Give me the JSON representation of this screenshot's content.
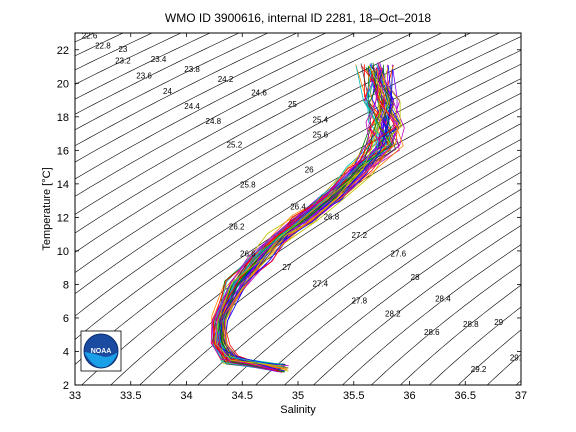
{
  "chart_data": {
    "type": "line",
    "title": "WMO ID 3900616, internal ID 2281, 18–Oct–2018",
    "xlabel": "Salinity",
    "ylabel": "Temperature [°C]",
    "xlim": [
      33,
      37
    ],
    "ylim": [
      2,
      23
    ],
    "x_ticks": [
      "33",
      "33.5",
      "34",
      "34.5",
      "35",
      "35.5",
      "36",
      "36.5",
      "37"
    ],
    "y_ticks": [
      "2",
      "4",
      "6",
      "8",
      "10",
      "12",
      "14",
      "16",
      "18",
      "20",
      "22"
    ],
    "grid": false,
    "logo_text": "NOAA",
    "density_contour_labels": [
      {
        "label": "22.6",
        "s": 33.13,
        "t": 22.8
      },
      {
        "label": "22.8",
        "s": 33.25,
        "t": 22.2
      },
      {
        "label": "23",
        "s": 33.43,
        "t": 22.0
      },
      {
        "label": "23.2",
        "s": 33.43,
        "t": 21.3
      },
      {
        "label": "23.4",
        "s": 33.75,
        "t": 21.4
      },
      {
        "label": "23.6",
        "s": 33.62,
        "t": 20.4
      },
      {
        "label": "23.8",
        "s": 34.05,
        "t": 20.8
      },
      {
        "label": "24",
        "s": 33.83,
        "t": 19.5
      },
      {
        "label": "24.2",
        "s": 34.35,
        "t": 20.2
      },
      {
        "label": "24.4",
        "s": 34.05,
        "t": 18.6
      },
      {
        "label": "24.6",
        "s": 34.65,
        "t": 19.4
      },
      {
        "label": "24.8",
        "s": 34.24,
        "t": 17.7
      },
      {
        "label": "25",
        "s": 34.95,
        "t": 18.7
      },
      {
        "label": "25.2",
        "s": 34.43,
        "t": 16.3
      },
      {
        "label": "25.4",
        "s": 35.2,
        "t": 17.8
      },
      {
        "label": "25.6",
        "s": 35.2,
        "t": 16.9
      },
      {
        "label": "25.8",
        "s": 34.55,
        "t": 13.9
      },
      {
        "label": "26",
        "s": 35.1,
        "t": 14.8
      },
      {
        "label": "26.2",
        "s": 34.45,
        "t": 11.4
      },
      {
        "label": "26.4",
        "s": 35.0,
        "t": 12.6
      },
      {
        "label": "26.6",
        "s": 34.55,
        "t": 9.8
      },
      {
        "label": "26.8",
        "s": 35.3,
        "t": 12.0
      },
      {
        "label": "27",
        "s": 34.9,
        "t": 9.0
      },
      {
        "label": "27.2",
        "s": 35.55,
        "t": 10.9
      },
      {
        "label": "27.4",
        "s": 35.2,
        "t": 8.0
      },
      {
        "label": "27.6",
        "s": 35.9,
        "t": 9.8
      },
      {
        "label": "27.8",
        "s": 35.55,
        "t": 7.0
      },
      {
        "label": "28",
        "s": 36.05,
        "t": 8.4
      },
      {
        "label": "28.2",
        "s": 35.85,
        "t": 6.2
      },
      {
        "label": "28.4",
        "s": 36.3,
        "t": 7.1
      },
      {
        "label": "28.6",
        "s": 36.2,
        "t": 5.1
      },
      {
        "label": "28.8",
        "s": 36.55,
        "t": 5.6
      },
      {
        "label": "29",
        "s": 36.8,
        "t": 5.7
      },
      {
        "label": "29.2",
        "s": 36.62,
        "t": 2.9
      },
      {
        "label": "29.",
        "s": 36.95,
        "t": 3.6
      }
    ],
    "series_colors": [
      "#0000ff",
      "#008000",
      "#ff0000",
      "#00bfbf",
      "#bf00bf",
      "#bfbf00",
      "#404040",
      "#ff8000",
      "#8000ff"
    ],
    "profile_envelope": {
      "note_points_s_t": [
        [
          34.85,
          3.0
        ],
        [
          34.4,
          3.5
        ],
        [
          34.3,
          4.5
        ],
        [
          34.3,
          6.0
        ],
        [
          34.45,
          8.0
        ],
        [
          34.65,
          9.6
        ],
        [
          34.85,
          10.8
        ],
        [
          35.05,
          11.9
        ],
        [
          35.3,
          13.2
        ],
        [
          35.55,
          14.8
        ],
        [
          35.75,
          16.2
        ],
        [
          35.8,
          17.5
        ],
        [
          35.75,
          19.0
        ],
        [
          35.7,
          21.0
        ]
      ]
    }
  }
}
